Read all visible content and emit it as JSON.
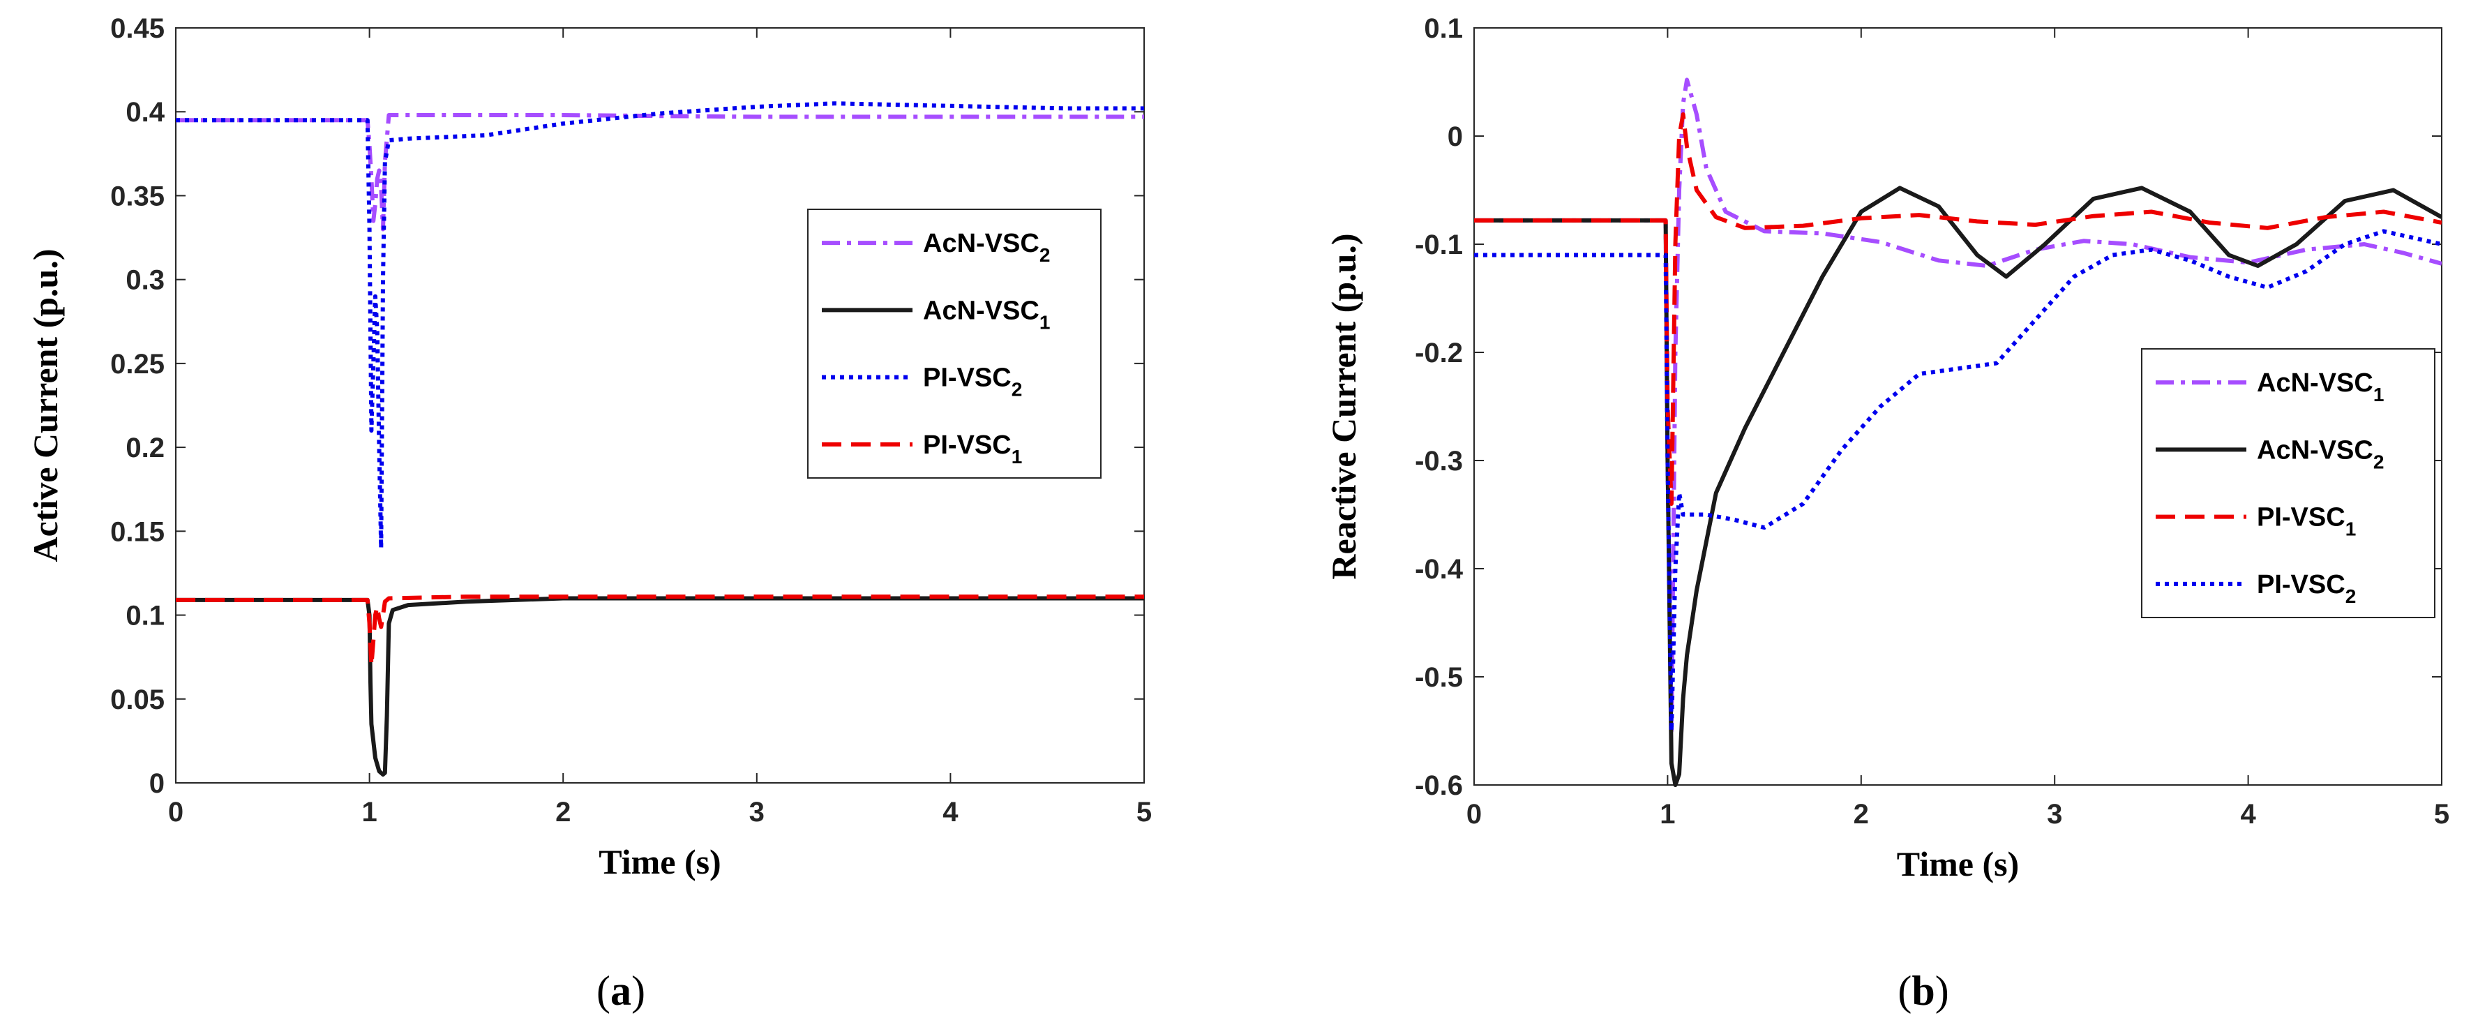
{
  "colors": {
    "purple": "#a64dff",
    "black": "#1a1a1a",
    "blue": "#0000ee",
    "red": "#ee0000",
    "axis": "#262626"
  },
  "captions": {
    "a": {
      "open": "(",
      "letter": "a",
      "close": ")"
    },
    "b": {
      "open": "(",
      "letter": "b",
      "close": ")"
    }
  },
  "chart_data": [
    {
      "type": "line",
      "panel": "a",
      "xlabel": "Time (s)",
      "ylabel": "Active Current (p.u.)",
      "xlim": [
        0,
        5
      ],
      "ylim": [
        0,
        0.45
      ],
      "xticks": [
        0,
        1,
        2,
        3,
        4,
        5
      ],
      "xtick_labels": [
        "0",
        "1",
        "2",
        "3",
        "4",
        "5"
      ],
      "yticks": [
        0,
        0.05,
        0.1,
        0.15,
        0.2,
        0.25,
        0.3,
        0.35,
        0.4,
        0.45
      ],
      "ytick_labels": [
        "0",
        "0.05",
        "0.1",
        "0.15",
        "0.2",
        "0.25",
        "0.3",
        "0.35",
        "0.4",
        "0.45"
      ],
      "grid": false,
      "legend_position": "center-right",
      "legend": [
        {
          "name": "AcN-VSC",
          "sub": "2",
          "series": "acn2"
        },
        {
          "name": "AcN-VSC",
          "sub": "1",
          "series": "acn1"
        },
        {
          "name": "PI-VSC",
          "sub": "2",
          "series": "pi2"
        },
        {
          "name": "PI-VSC",
          "sub": "1",
          "series": "pi1"
        }
      ],
      "series": [
        {
          "id": "acn2",
          "name": "AcN-VSC2",
          "style": "dashdot",
          "color": "purple",
          "x": [
            0,
            0.99,
            1.0,
            1.01,
            1.02,
            1.03,
            1.04,
            1.05,
            1.06,
            1.07,
            1.08,
            1.1,
            1.3,
            2.0,
            3.0,
            4.0,
            5.0
          ],
          "y": [
            0.395,
            0.395,
            0.38,
            0.36,
            0.335,
            0.345,
            0.36,
            0.365,
            0.355,
            0.33,
            0.37,
            0.398,
            0.398,
            0.398,
            0.397,
            0.397,
            0.397
          ]
        },
        {
          "id": "acn1",
          "name": "AcN-VSC1",
          "style": "solid",
          "color": "black",
          "x": [
            0,
            0.99,
            1.0,
            1.005,
            1.01,
            1.03,
            1.05,
            1.07,
            1.08,
            1.09,
            1.1,
            1.12,
            1.2,
            1.5,
            2.0,
            3.0,
            4.0,
            5.0
          ],
          "y": [
            0.109,
            0.109,
            0.1,
            0.06,
            0.035,
            0.015,
            0.007,
            0.005,
            0.006,
            0.04,
            0.095,
            0.103,
            0.106,
            0.108,
            0.11,
            0.11,
            0.11,
            0.11
          ]
        },
        {
          "id": "pi2",
          "name": "PI-VSC2",
          "style": "dotted",
          "color": "blue",
          "x": [
            0,
            0.99,
            1.0,
            1.01,
            1.02,
            1.03,
            1.04,
            1.05,
            1.06,
            1.07,
            1.08,
            1.1,
            1.2,
            1.6,
            2.0,
            2.5,
            3.0,
            3.4,
            3.8,
            4.2,
            4.6,
            5.0
          ],
          "y": [
            0.395,
            0.395,
            0.33,
            0.21,
            0.25,
            0.29,
            0.27,
            0.2,
            0.14,
            0.3,
            0.37,
            0.383,
            0.384,
            0.386,
            0.393,
            0.399,
            0.403,
            0.405,
            0.404,
            0.403,
            0.402,
            0.402
          ]
        },
        {
          "id": "pi1",
          "name": "PI-VSC1",
          "style": "dashed",
          "color": "red",
          "x": [
            0,
            0.99,
            1.0,
            1.01,
            1.02,
            1.03,
            1.04,
            1.05,
            1.06,
            1.07,
            1.08,
            1.1,
            1.5,
            2.0,
            3.0,
            4.0,
            5.0
          ],
          "y": [
            0.109,
            0.109,
            0.095,
            0.07,
            0.085,
            0.1,
            0.105,
            0.098,
            0.093,
            0.1,
            0.108,
            0.11,
            0.111,
            0.111,
            0.111,
            0.111,
            0.111
          ]
        }
      ]
    },
    {
      "type": "line",
      "panel": "b",
      "xlabel": "Time (s)",
      "ylabel": "Reactive Current (p.u.)",
      "xlim": [
        0,
        5
      ],
      "ylim": [
        -0.6,
        0.1
      ],
      "xticks": [
        0,
        1,
        2,
        3,
        4,
        5
      ],
      "xtick_labels": [
        "0",
        "1",
        "2",
        "3",
        "4",
        "5"
      ],
      "yticks": [
        -0.6,
        -0.5,
        -0.4,
        -0.3,
        -0.2,
        -0.1,
        0,
        0.1
      ],
      "ytick_labels": [
        "-0.6",
        "-0.5",
        "-0.4",
        "-0.3",
        "-0.2",
        "-0.1",
        "0",
        "0.1"
      ],
      "grid": false,
      "legend_position": "right",
      "legend": [
        {
          "name": "AcN-VSC",
          "sub": "1",
          "series": "acn1"
        },
        {
          "name": "AcN-VSC",
          "sub": "2",
          "series": "acn2"
        },
        {
          "name": "PI-VSC",
          "sub": "1",
          "series": "pi1"
        },
        {
          "name": "PI-VSC",
          "sub": "2",
          "series": "pi2"
        }
      ],
      "series": [
        {
          "id": "acn1",
          "name": "AcN-VSC1",
          "style": "dashdot",
          "color": "purple",
          "x": [
            0,
            0.99,
            1.0,
            1.02,
            1.04,
            1.06,
            1.08,
            1.1,
            1.15,
            1.2,
            1.3,
            1.5,
            1.8,
            2.1,
            2.4,
            2.65,
            2.9,
            3.15,
            3.4,
            3.7,
            4.0,
            4.3,
            4.6,
            4.8,
            5.0
          ],
          "y": [
            -0.078,
            -0.078,
            -0.3,
            -0.55,
            -0.2,
            -0.05,
            0.03,
            0.052,
            0.02,
            -0.03,
            -0.07,
            -0.088,
            -0.09,
            -0.098,
            -0.115,
            -0.12,
            -0.105,
            -0.097,
            -0.1,
            -0.112,
            -0.117,
            -0.105,
            -0.1,
            -0.108,
            -0.118
          ]
        },
        {
          "id": "acn2",
          "name": "AcN-VSC2",
          "style": "solid",
          "color": "black",
          "x": [
            0,
            0.99,
            1.0,
            1.02,
            1.04,
            1.06,
            1.08,
            1.1,
            1.15,
            1.25,
            1.4,
            1.6,
            1.8,
            2.0,
            2.2,
            2.4,
            2.6,
            2.75,
            2.95,
            3.2,
            3.45,
            3.7,
            3.9,
            4.05,
            4.25,
            4.5,
            4.75,
            5.0
          ],
          "y": [
            -0.078,
            -0.078,
            -0.3,
            -0.58,
            -0.6,
            -0.59,
            -0.52,
            -0.48,
            -0.42,
            -0.33,
            -0.27,
            -0.2,
            -0.13,
            -0.07,
            -0.048,
            -0.065,
            -0.11,
            -0.13,
            -0.1,
            -0.058,
            -0.048,
            -0.07,
            -0.11,
            -0.12,
            -0.1,
            -0.06,
            -0.05,
            -0.075
          ]
        },
        {
          "id": "pi1",
          "name": "PI-VSC1",
          "style": "dashed",
          "color": "red",
          "x": [
            0,
            0.99,
            1.0,
            1.02,
            1.04,
            1.06,
            1.08,
            1.1,
            1.15,
            1.25,
            1.4,
            1.7,
            2.0,
            2.3,
            2.6,
            2.9,
            3.2,
            3.5,
            3.8,
            4.1,
            4.4,
            4.7,
            5.0
          ],
          "y": [
            -0.078,
            -0.078,
            -0.25,
            -0.34,
            -0.1,
            0.0,
            0.02,
            -0.01,
            -0.05,
            -0.075,
            -0.085,
            -0.083,
            -0.076,
            -0.073,
            -0.079,
            -0.082,
            -0.074,
            -0.07,
            -0.08,
            -0.085,
            -0.075,
            -0.07,
            -0.08
          ]
        },
        {
          "id": "pi2",
          "name": "PI-VSC2",
          "style": "dotted",
          "color": "blue",
          "x": [
            0,
            0.99,
            1.0,
            1.02,
            1.04,
            1.06,
            1.08,
            1.1,
            1.2,
            1.35,
            1.5,
            1.7,
            1.9,
            2.1,
            2.3,
            2.5,
            2.7,
            2.9,
            3.1,
            3.3,
            3.5,
            3.7,
            3.9,
            4.1,
            4.3,
            4.5,
            4.7,
            5.0
          ],
          "y": [
            -0.11,
            -0.11,
            -0.3,
            -0.55,
            -0.4,
            -0.33,
            -0.35,
            -0.35,
            -0.35,
            -0.355,
            -0.362,
            -0.34,
            -0.29,
            -0.25,
            -0.22,
            -0.215,
            -0.21,
            -0.17,
            -0.13,
            -0.11,
            -0.105,
            -0.115,
            -0.13,
            -0.14,
            -0.125,
            -0.1,
            -0.088,
            -0.1
          ]
        }
      ]
    }
  ]
}
